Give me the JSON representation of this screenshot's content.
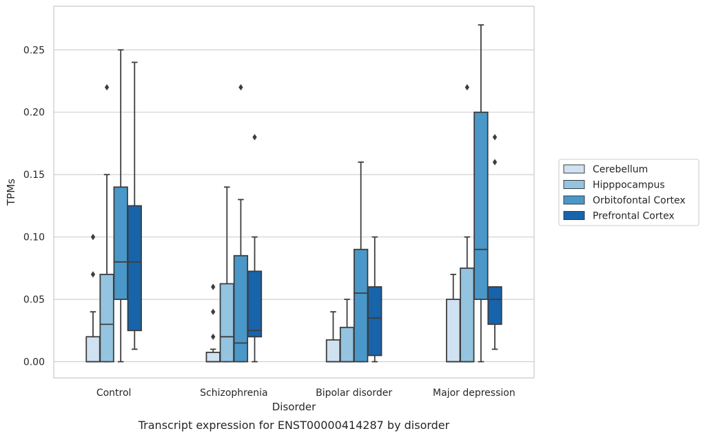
{
  "caption": "Transcript expression for ENST00000414287 by disorder",
  "chart_data": {
    "type": "boxplot",
    "xlabel": "Disorder",
    "ylabel": "TPMs",
    "ylim": [
      -0.013,
      0.285
    ],
    "yticks": [
      0.0,
      0.05,
      0.1,
      0.15,
      0.2,
      0.25
    ],
    "ytick_labels": [
      "0.00",
      "0.05",
      "0.10",
      "0.15",
      "0.20",
      "0.25"
    ],
    "grid": true,
    "legend_position": "right",
    "categories": [
      "Control",
      "Schizophrenia",
      "Bipolar disorder",
      "Major depression"
    ],
    "series": [
      {
        "name": "Cerebellum",
        "color": "#d0e1f2",
        "boxes": [
          {
            "whislo": 0.0,
            "q1": 0.0,
            "med": 0.0,
            "q3": 0.02,
            "whishi": 0.04,
            "fliers": [
              0.07,
              0.1
            ]
          },
          {
            "whislo": 0.0,
            "q1": 0.0,
            "med": 0.0,
            "q3": 0.0075,
            "whishi": 0.01,
            "fliers": [
              0.02,
              0.04,
              0.06
            ]
          },
          {
            "whislo": 0.0,
            "q1": 0.0,
            "med": 0.0,
            "q3": 0.0175,
            "whishi": 0.04,
            "fliers": []
          },
          {
            "whislo": 0.0,
            "q1": 0.0,
            "med": 0.0,
            "q3": 0.05,
            "whishi": 0.07,
            "fliers": []
          }
        ]
      },
      {
        "name": "Hipppocampus",
        "color": "#94c4df",
        "boxes": [
          {
            "whislo": 0.0,
            "q1": 0.0,
            "med": 0.03,
            "q3": 0.07,
            "whishi": 0.15,
            "fliers": [
              0.22
            ]
          },
          {
            "whislo": 0.0,
            "q1": 0.0,
            "med": 0.02,
            "q3": 0.0625,
            "whishi": 0.14,
            "fliers": []
          },
          {
            "whislo": 0.0,
            "q1": 0.0,
            "med": 0.0,
            "q3": 0.0275,
            "whishi": 0.05,
            "fliers": []
          },
          {
            "whislo": 0.0,
            "q1": 0.0,
            "med": 0.0,
            "q3": 0.075,
            "whishi": 0.1,
            "fliers": [
              0.22
            ]
          }
        ]
      },
      {
        "name": "Orbitofontal Cortex",
        "color": "#4a98c9",
        "boxes": [
          {
            "whislo": 0.0,
            "q1": 0.05,
            "med": 0.08,
            "q3": 0.14,
            "whishi": 0.25,
            "fliers": []
          },
          {
            "whislo": 0.0,
            "q1": 0.0,
            "med": 0.015,
            "q3": 0.085,
            "whishi": 0.13,
            "fliers": [
              0.22
            ]
          },
          {
            "whislo": 0.0,
            "q1": 0.0,
            "med": 0.055,
            "q3": 0.09,
            "whishi": 0.16,
            "fliers": []
          },
          {
            "whislo": 0.0,
            "q1": 0.05,
            "med": 0.09,
            "q3": 0.2,
            "whishi": 0.27,
            "fliers": []
          }
        ]
      },
      {
        "name": "Prefrontal Cortex",
        "color": "#1764ab",
        "boxes": [
          {
            "whislo": 0.01,
            "q1": 0.025,
            "med": 0.08,
            "q3": 0.125,
            "whishi": 0.24,
            "fliers": []
          },
          {
            "whislo": 0.0,
            "q1": 0.02,
            "med": 0.025,
            "q3": 0.0725,
            "whishi": 0.1,
            "fliers": [
              0.18
            ]
          },
          {
            "whislo": 0.0,
            "q1": 0.005,
            "med": 0.035,
            "q3": 0.06,
            "whishi": 0.1,
            "fliers": []
          },
          {
            "whislo": 0.01,
            "q1": 0.03,
            "med": 0.05,
            "q3": 0.06,
            "whishi": 0.06,
            "fliers": [
              0.16,
              0.18
            ]
          }
        ]
      }
    ]
  }
}
